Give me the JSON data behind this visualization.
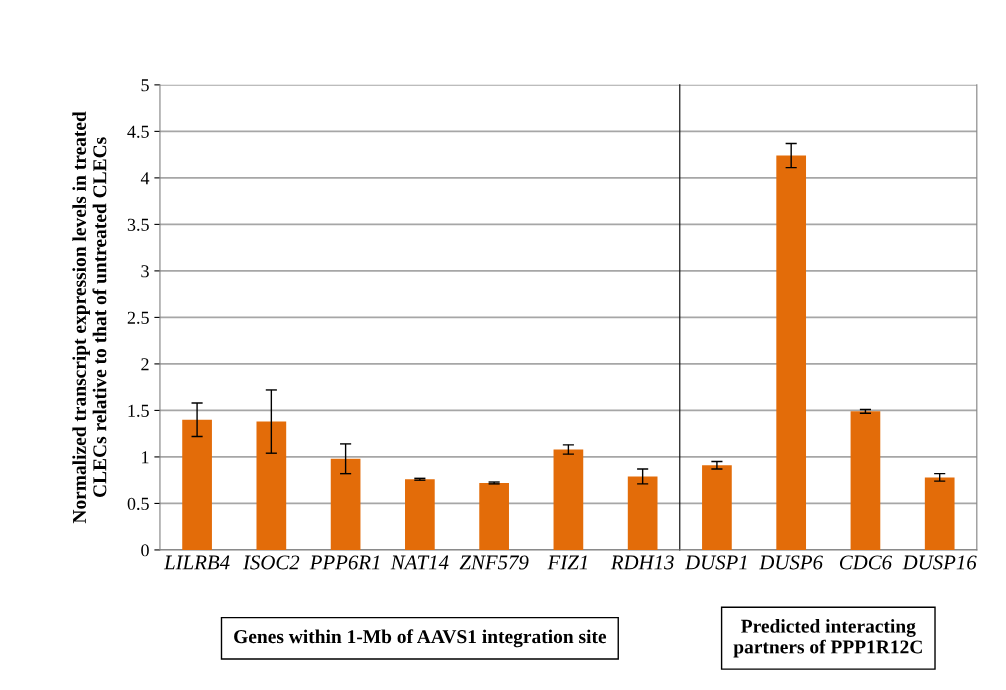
{
  "chart_data": [
    {
      "type": "bar",
      "ylabel": "Normalized transcript expression levels in treated\nCLECs relative to that of untreated CLECs",
      "categories": [
        "LILRB4",
        "ISOC2",
        "PPP6R1",
        "NAT14",
        "ZNF579",
        "FIZ1",
        "RDH13"
      ],
      "values": [
        1.4,
        1.38,
        0.98,
        0.76,
        0.72,
        1.08,
        0.79
      ],
      "errors": [
        0.18,
        0.34,
        0.16,
        0.01,
        0.01,
        0.05,
        0.08
      ],
      "color": "#e36c09",
      "ylim": [
        0,
        5
      ],
      "yticks": [
        0,
        0.5,
        1,
        1.5,
        2,
        2.5,
        3,
        3.5,
        4,
        4.5,
        5
      ],
      "grid": "y",
      "annotations": [
        "Genes within 1-Mb of AAVS1 integration site"
      ]
    },
    {
      "type": "bar",
      "categories": [
        "DUSP1",
        "DUSP6",
        "CDC6",
        "DUSP16"
      ],
      "values": [
        0.91,
        4.24,
        1.49,
        0.78
      ],
      "errors": [
        0.04,
        0.13,
        0.02,
        0.04
      ],
      "color": "#e36c09",
      "ylim": [
        0,
        5
      ],
      "yticks": [
        0,
        0.5,
        1,
        1.5,
        2,
        2.5,
        3,
        3.5,
        4,
        4.5,
        5
      ],
      "grid": "y",
      "tick_labels": "x",
      "annotations": [
        "Predicted interacting\npartners of PPP1R12C"
      ]
    }
  ]
}
